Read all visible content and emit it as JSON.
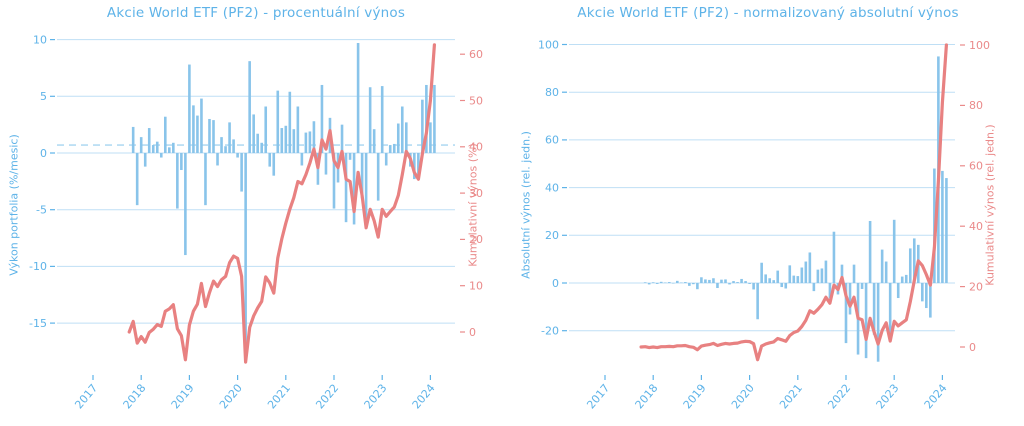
{
  "figure": {
    "background": "#ffffff",
    "bar_color": "#89c4ea",
    "grid_color": "#bfdff5",
    "mean_dash_color": "#b4dcf3",
    "line_color": "#e88181",
    "blue_text_color": "#5eb3e8",
    "red_text_color": "#ea8a8a"
  },
  "chart_data": {
    "months": [
      "2017-10",
      "2017-11",
      "2017-12",
      "2018-01",
      "2018-02",
      "2018-03",
      "2018-04",
      "2018-05",
      "2018-06",
      "2018-07",
      "2018-08",
      "2018-09",
      "2018-10",
      "2018-11",
      "2018-12",
      "2019-01",
      "2019-02",
      "2019-03",
      "2019-04",
      "2019-05",
      "2019-06",
      "2019-07",
      "2019-08",
      "2019-09",
      "2019-10",
      "2019-11",
      "2019-12",
      "2020-01",
      "2020-02",
      "2020-03",
      "2020-04",
      "2020-05",
      "2020-06",
      "2020-07",
      "2020-08",
      "2020-09",
      "2020-10",
      "2020-11",
      "2020-12",
      "2021-01",
      "2021-02",
      "2021-03",
      "2021-04",
      "2021-05",
      "2021-06",
      "2021-07",
      "2021-08",
      "2021-09",
      "2021-10",
      "2021-11",
      "2021-12",
      "2022-01",
      "2022-02",
      "2022-03",
      "2022-04",
      "2022-05",
      "2022-06",
      "2022-07",
      "2022-08",
      "2022-09",
      "2022-10",
      "2022-11",
      "2022-12",
      "2023-01",
      "2023-02",
      "2023-03",
      "2023-04",
      "2023-05",
      "2023-06",
      "2023-07",
      "2023-08",
      "2023-09",
      "2023-10",
      "2023-11",
      "2023-12",
      "2024-01",
      "2024-02"
    ],
    "x_ticks": [
      "2017",
      "2018",
      "2019",
      "2020",
      "2021",
      "2022",
      "2023",
      "2024"
    ],
    "charts": [
      {
        "title": "Akcie World ETF (PF2) - procentuální výnos",
        "type": "bar+line",
        "mean_line": 0.7,
        "left_axis": {
          "label": "Výkon portfolia (%/mesic)",
          "ticks": [
            10,
            5,
            0,
            -5,
            -10,
            -15
          ],
          "range": [
            -19.5,
            10.2
          ]
        },
        "right_axis": {
          "label": "Kumulativní výnos (%)",
          "ticks": [
            60,
            50,
            40,
            30,
            20,
            10,
            0
          ],
          "range": [
            -8.5,
            63.7
          ]
        },
        "bar_series": {
          "name": "Výkon portfolia (%/mesic)",
          "values": [
            null,
            2.3,
            -4.6,
            1.4,
            -1.2,
            2.2,
            0.7,
            1.0,
            -0.4,
            3.2,
            0.5,
            0.9,
            -4.9,
            -1.5,
            -9.0,
            7.8,
            4.2,
            3.3,
            4.8,
            -4.6,
            3.0,
            2.9,
            -1.1,
            1.4,
            0.6,
            2.7,
            1.2,
            -0.4,
            -3.4,
            -18.2,
            8.1,
            3.4,
            1.7,
            0.9,
            4.1,
            -1.2,
            -2.0,
            5.5,
            2.2,
            2.4,
            5.4,
            2.1,
            4.1,
            -1.1,
            1.8,
            1.9,
            2.8,
            -2.8,
            6.0,
            -1.9,
            3.1,
            -4.9,
            -2.6,
            2.5,
            -6.1,
            -0.6,
            -6.3,
            9.7,
            -4.0,
            -6.3,
            5.8,
            2.1,
            -4.2,
            5.9,
            -1.1,
            0.7,
            0.8,
            2.6,
            4.1,
            2.7,
            -1.2,
            -2.3,
            -2.2,
            4.7,
            6.0,
            2.7,
            6.0
          ]
        },
        "line_series": {
          "name": "Kumulativní výnos (%)",
          "values": [
            0.0,
            2.3,
            -2.4,
            -1.0,
            -2.2,
            -0.1,
            0.6,
            1.6,
            1.2,
            4.5,
            5.0,
            5.9,
            0.7,
            -0.8,
            -6.0,
            1.5,
            4.5,
            6.0,
            10.5,
            5.5,
            8.5,
            11.0,
            9.8,
            11.3,
            12.0,
            15.0,
            16.4,
            15.9,
            12.0,
            -6.5,
            1.0,
            3.5,
            5.2,
            6.6,
            11.9,
            10.6,
            8.4,
            16.0,
            20.1,
            23.5,
            26.5,
            29.0,
            32.5,
            32.0,
            34.0,
            36.5,
            39.5,
            35.5,
            41.5,
            39.5,
            43.5,
            37.0,
            35.5,
            39.0,
            33.0,
            32.5,
            26.0,
            34.5,
            29.5,
            22.5,
            26.5,
            24.0,
            20.5,
            26.5,
            25.0,
            26.0,
            27.0,
            29.5,
            34.0,
            39.0,
            37.5,
            34.5,
            33.0,
            38.5,
            43.0,
            50.0,
            62.0
          ]
        }
      },
      {
        "title": "Akcie World ETF (PF2) - normalizovaný absolutní výnos",
        "type": "bar+line",
        "mean_line": null,
        "left_axis": {
          "label": "Absolutní výnos (rel. jedn.)",
          "ticks": [
            100,
            80,
            60,
            40,
            20,
            0,
            -20
          ],
          "range": [
            -37,
            103
          ]
        },
        "right_axis": {
          "label": "Kumulativní výnos (rel. jedn.)",
          "ticks": [
            100,
            80,
            60,
            40,
            20,
            0
          ],
          "range": [
            -8,
            102.6
          ]
        },
        "bar_series": {
          "name": "Absolutní výnos (rel. jedn.)",
          "values": [
            null,
            0.3,
            -0.6,
            0.3,
            -0.4,
            0.5,
            0.2,
            0.4,
            -0.2,
            0.9,
            0.2,
            0.4,
            -1.2,
            -0.5,
            -2.6,
            2.4,
            1.5,
            1.3,
            2.0,
            -2.1,
            1.4,
            1.5,
            -0.6,
            0.8,
            0.4,
            1.7,
            0.8,
            -0.4,
            -2.7,
            -15.2,
            8.5,
            3.6,
            2.0,
            1.2,
            5.2,
            -1.7,
            -2.3,
            7.4,
            3.1,
            2.9,
            6.5,
            9.0,
            12.8,
            -3.4,
            5.6,
            6.1,
            9.4,
            -6.5,
            21.5,
            -4.8,
            7.7,
            -25.2,
            -13.2,
            7.7,
            -30.0,
            -2.5,
            -31.5,
            26.0,
            -21.7,
            -33.0,
            14.0,
            9.0,
            -22.0,
            26.5,
            -6.3,
            2.7,
            3.4,
            14.5,
            18.7,
            16.0,
            -7.7,
            -10.5,
            -14.5,
            48.0,
            95.0,
            47.0,
            44.0
          ]
        },
        "line_series": {
          "name": "Kumulativní výnos (rel. jedn.)",
          "values": [
            0.0,
            0.1,
            -0.2,
            0.0,
            -0.2,
            0.1,
            0.1,
            0.2,
            0.1,
            0.4,
            0.4,
            0.5,
            0.1,
            -0.1,
            -0.9,
            0.3,
            0.6,
            0.8,
            1.2,
            0.5,
            0.9,
            1.2,
            1.0,
            1.2,
            1.3,
            1.7,
            1.9,
            1.8,
            1.1,
            -4.2,
            0.3,
            1.0,
            1.4,
            1.7,
            2.8,
            2.4,
            1.9,
            3.8,
            4.8,
            5.3,
            6.8,
            8.8,
            12.0,
            11.2,
            12.5,
            14.0,
            16.5,
            14.5,
            20.5,
            19.0,
            23.0,
            17.0,
            13.5,
            16.5,
            9.5,
            9.0,
            2.5,
            9.5,
            5.0,
            1.0,
            5.5,
            8.0,
            2.0,
            8.5,
            7.0,
            8.0,
            9.0,
            15.0,
            22.0,
            28.5,
            27.0,
            24.0,
            20.5,
            33.0,
            55.0,
            81.0,
            100.0
          ]
        }
      }
    ]
  }
}
